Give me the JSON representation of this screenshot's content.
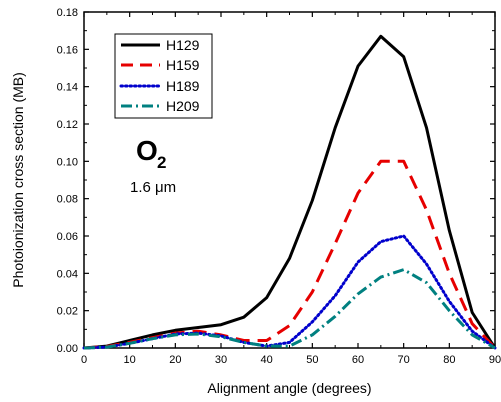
{
  "chart_data": {
    "type": "line",
    "xlabel": "Alignment angle (degrees)",
    "ylabel": "Photoionization cross section (MB)",
    "xlim": [
      0,
      90
    ],
    "ylim": [
      0,
      0.18
    ],
    "x_ticks": [
      "0",
      "10",
      "20",
      "30",
      "40",
      "50",
      "60",
      "70",
      "80",
      "90"
    ],
    "y_ticks": [
      "0.00",
      "0.02",
      "0.04",
      "0.06",
      "0.08",
      "0.10",
      "0.12",
      "0.14",
      "0.16",
      "0.18"
    ],
    "grid": false,
    "legend_position": "top-left",
    "annotations": {
      "molecule": "O",
      "molecule_subscript": "2",
      "wavelength": "1.6 μm"
    },
    "series": [
      {
        "name": "H129",
        "color": "#000000",
        "style": "solid",
        "x": [
          0,
          5,
          10,
          15,
          20,
          25,
          30,
          35,
          40,
          45,
          50,
          55,
          60,
          65,
          70,
          75,
          80,
          85,
          90
        ],
        "y": [
          0.0,
          0.001,
          0.004,
          0.007,
          0.0095,
          0.011,
          0.0125,
          0.0165,
          0.027,
          0.048,
          0.079,
          0.118,
          0.151,
          0.167,
          0.156,
          0.118,
          0.063,
          0.019,
          0.0
        ]
      },
      {
        "name": "H159",
        "color": "#e60000",
        "style": "dashed",
        "x": [
          0,
          5,
          10,
          15,
          20,
          25,
          30,
          35,
          40,
          45,
          50,
          55,
          60,
          65,
          70,
          75,
          80,
          85,
          90
        ],
        "y": [
          0.0,
          0.0008,
          0.003,
          0.0055,
          0.008,
          0.009,
          0.007,
          0.004,
          0.004,
          0.012,
          0.03,
          0.056,
          0.083,
          0.1,
          0.1,
          0.074,
          0.04,
          0.013,
          0.0
        ]
      },
      {
        "name": "H189",
        "color": "#0000cc",
        "style": "dotted",
        "x": [
          0,
          5,
          10,
          15,
          20,
          25,
          30,
          35,
          40,
          45,
          50,
          55,
          60,
          65,
          70,
          75,
          80,
          85,
          90
        ],
        "y": [
          0.0,
          0.0005,
          0.0025,
          0.005,
          0.0075,
          0.008,
          0.0065,
          0.003,
          0.001,
          0.003,
          0.014,
          0.028,
          0.046,
          0.057,
          0.06,
          0.045,
          0.025,
          0.009,
          0.0
        ]
      },
      {
        "name": "H209",
        "color": "#008080",
        "style": "dash-dot",
        "x": [
          0,
          5,
          10,
          15,
          20,
          25,
          30,
          35,
          40,
          45,
          50,
          55,
          60,
          65,
          70,
          75,
          80,
          85,
          90
        ],
        "y": [
          0.0,
          0.0005,
          0.0025,
          0.005,
          0.007,
          0.0075,
          0.006,
          0.003,
          0.001,
          0.001,
          0.007,
          0.017,
          0.029,
          0.038,
          0.042,
          0.035,
          0.02,
          0.007,
          0.0
        ]
      }
    ]
  }
}
